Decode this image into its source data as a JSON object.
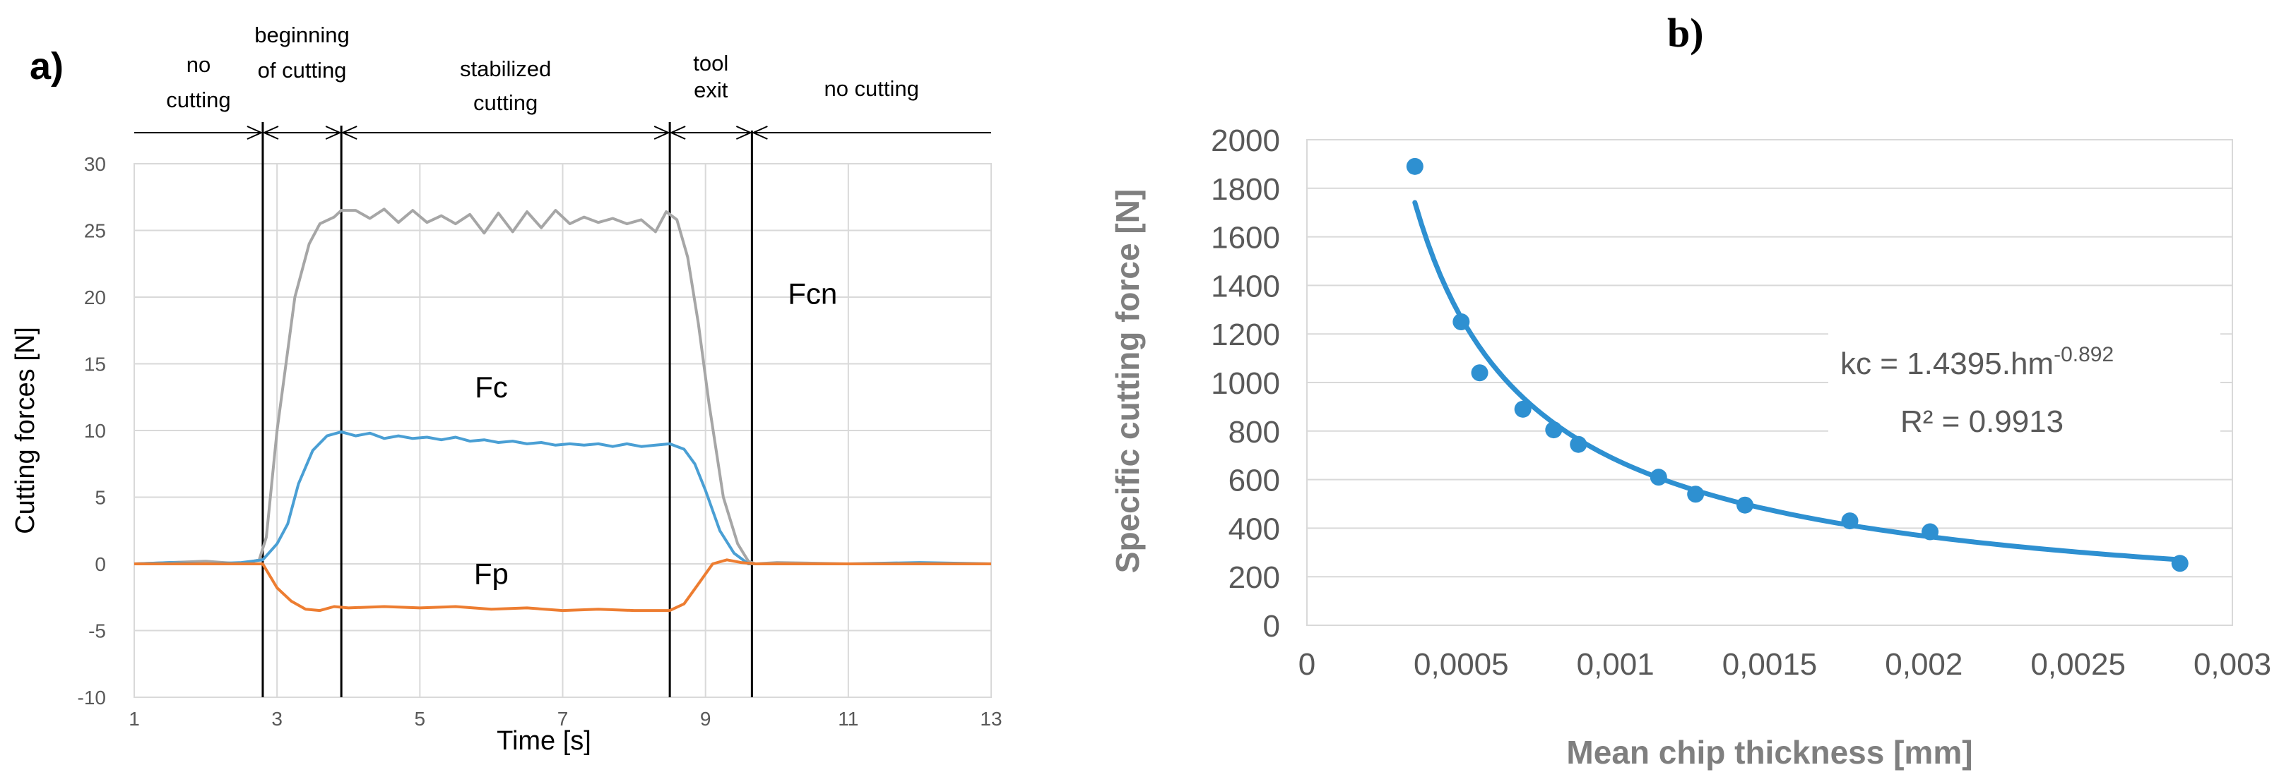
{
  "colors": {
    "fcn": "#a6a6a6",
    "fc": "#4a9fd4",
    "fp": "#ed7d31",
    "scatter": "#2e90d1",
    "grid": "#d9d9d9",
    "tick_text": "#595959",
    "axis_title_b": "#7f7f7f"
  },
  "chart_data": [
    {
      "type": "line",
      "panel_label": "a)",
      "xlabel": "Time [s]",
      "ylabel": "Cutting forces [N]",
      "xlim": [
        1,
        13
      ],
      "ylim": [
        -10,
        30
      ],
      "xticks": [
        "1",
        "3",
        "5",
        "7",
        "9",
        "11",
        "13"
      ],
      "yticks": [
        "-10",
        "-5",
        "0",
        "5",
        "10",
        "15",
        "20",
        "25",
        "30"
      ],
      "grid": "vertical and horizontal",
      "phases": [
        {
          "label": [
            "no",
            "cutting"
          ],
          "from": 1,
          "to": 2.8
        },
        {
          "label": [
            "beginning",
            "of cutting"
          ],
          "from": 2.8,
          "to": 3.9
        },
        {
          "label": [
            "stabilized",
            "cutting"
          ],
          "from": 3.9,
          "to": 8.5
        },
        {
          "label": [
            "tool",
            "exit"
          ],
          "from": 8.5,
          "to": 9.65
        },
        {
          "label": [
            "no cutting"
          ],
          "from": 9.65,
          "to": 13
        }
      ],
      "boundaries": [
        2.8,
        3.9,
        8.5,
        9.65
      ],
      "series": [
        {
          "name": "Fcn",
          "points": [
            [
              1,
              0
            ],
            [
              1.5,
              0.1
            ],
            [
              2,
              0.2
            ],
            [
              2.5,
              0
            ],
            [
              2.75,
              0.3
            ],
            [
              2.85,
              2
            ],
            [
              3.0,
              10
            ],
            [
              3.1,
              14
            ],
            [
              3.25,
              20
            ],
            [
              3.45,
              24
            ],
            [
              3.6,
              25.5
            ],
            [
              3.8,
              26
            ],
            [
              3.9,
              26.5
            ],
            [
              4.1,
              26.5
            ],
            [
              4.3,
              25.9
            ],
            [
              4.5,
              26.6
            ],
            [
              4.7,
              25.6
            ],
            [
              4.9,
              26.5
            ],
            [
              5.1,
              25.6
            ],
            [
              5.3,
              26.1
            ],
            [
              5.5,
              25.5
            ],
            [
              5.7,
              26.2
            ],
            [
              5.9,
              24.8
            ],
            [
              6.1,
              26.3
            ],
            [
              6.3,
              24.9
            ],
            [
              6.5,
              26.4
            ],
            [
              6.7,
              25.2
            ],
            [
              6.9,
              26.5
            ],
            [
              7.1,
              25.5
            ],
            [
              7.3,
              26.0
            ],
            [
              7.5,
              25.6
            ],
            [
              7.7,
              25.9
            ],
            [
              7.9,
              25.5
            ],
            [
              8.1,
              25.8
            ],
            [
              8.3,
              24.9
            ],
            [
              8.45,
              26.4
            ],
            [
              8.6,
              25.8
            ],
            [
              8.75,
              23
            ],
            [
              8.9,
              18
            ],
            [
              9.05,
              12
            ],
            [
              9.25,
              5
            ],
            [
              9.45,
              1.5
            ],
            [
              9.6,
              0.2
            ],
            [
              9.7,
              0
            ],
            [
              10,
              0.1
            ],
            [
              11,
              0
            ],
            [
              12,
              0
            ],
            [
              13,
              0
            ]
          ]
        },
        {
          "name": "Fc",
          "points": [
            [
              1,
              0
            ],
            [
              1.5,
              0.1
            ],
            [
              2,
              0
            ],
            [
              2.5,
              0.1
            ],
            [
              2.8,
              0.3
            ],
            [
              3.0,
              1.5
            ],
            [
              3.15,
              3
            ],
            [
              3.3,
              6
            ],
            [
              3.5,
              8.5
            ],
            [
              3.7,
              9.6
            ],
            [
              3.9,
              9.9
            ],
            [
              4.1,
              9.6
            ],
            [
              4.3,
              9.8
            ],
            [
              4.5,
              9.4
            ],
            [
              4.7,
              9.6
            ],
            [
              4.9,
              9.4
            ],
            [
              5.1,
              9.5
            ],
            [
              5.3,
              9.3
            ],
            [
              5.5,
              9.5
            ],
            [
              5.7,
              9.2
            ],
            [
              5.9,
              9.3
            ],
            [
              6.1,
              9.1
            ],
            [
              6.3,
              9.2
            ],
            [
              6.5,
              9.0
            ],
            [
              6.7,
              9.1
            ],
            [
              6.9,
              8.9
            ],
            [
              7.1,
              9.0
            ],
            [
              7.3,
              8.9
            ],
            [
              7.5,
              9.0
            ],
            [
              7.7,
              8.8
            ],
            [
              7.9,
              9.0
            ],
            [
              8.1,
              8.8
            ],
            [
              8.3,
              8.9
            ],
            [
              8.5,
              9.0
            ],
            [
              8.7,
              8.6
            ],
            [
              8.85,
              7.5
            ],
            [
              9.0,
              5.5
            ],
            [
              9.2,
              2.5
            ],
            [
              9.4,
              0.8
            ],
            [
              9.6,
              0
            ],
            [
              10,
              0
            ],
            [
              11,
              0
            ],
            [
              12,
              0.1
            ],
            [
              13,
              0
            ]
          ]
        },
        {
          "name": "Fp",
          "points": [
            [
              1,
              0
            ],
            [
              2,
              0
            ],
            [
              2.8,
              0
            ],
            [
              3.0,
              -1.8
            ],
            [
              3.2,
              -2.8
            ],
            [
              3.4,
              -3.4
            ],
            [
              3.6,
              -3.5
            ],
            [
              3.8,
              -3.2
            ],
            [
              4.0,
              -3.3
            ],
            [
              4.5,
              -3.2
            ],
            [
              5,
              -3.3
            ],
            [
              5.5,
              -3.2
            ],
            [
              6,
              -3.4
            ],
            [
              6.5,
              -3.3
            ],
            [
              7,
              -3.5
            ],
            [
              7.5,
              -3.4
            ],
            [
              8,
              -3.5
            ],
            [
              8.5,
              -3.5
            ],
            [
              8.7,
              -3.0
            ],
            [
              8.9,
              -1.5
            ],
            [
              9.1,
              0
            ],
            [
              9.3,
              0.3
            ],
            [
              9.5,
              0.1
            ],
            [
              9.7,
              0
            ],
            [
              10,
              0
            ],
            [
              13,
              0
            ]
          ]
        }
      ],
      "series_labels": [
        {
          "name": "Fcn",
          "x": 10.5,
          "y": 19.5
        },
        {
          "name": "Fc",
          "x": 6.0,
          "y": 12.5
        },
        {
          "name": "Fp",
          "x": 6.0,
          "y": -1.5
        }
      ]
    },
    {
      "type": "scatter",
      "panel_label": "b)",
      "xlabel": "Mean chip thickness [mm]",
      "ylabel": "Specific cutting force  [N]",
      "xlim": [
        0,
        0.003
      ],
      "ylim": [
        0,
        2000
      ],
      "xticks": [
        "0",
        "0,0005",
        "0,001",
        "0,0015",
        "0,002",
        "0,0025",
        "0,003"
      ],
      "yticks": [
        "0",
        "200",
        "400",
        "600",
        "800",
        "1000",
        "1200",
        "1400",
        "1600",
        "1800",
        "2000"
      ],
      "grid": "horizontal",
      "points": [
        [
          0.00035,
          1890
        ],
        [
          0.0005,
          1250
        ],
        [
          0.00056,
          1040
        ],
        [
          0.0007,
          890
        ],
        [
          0.0008,
          805
        ],
        [
          0.00088,
          745
        ],
        [
          0.00114,
          610
        ],
        [
          0.00126,
          540
        ],
        [
          0.00142,
          495
        ],
        [
          0.00176,
          430
        ],
        [
          0.00202,
          385
        ],
        [
          0.00283,
          255
        ]
      ],
      "trendline": {
        "a": 1.4395,
        "b": -0.892,
        "from": 0.00035,
        "to": 0.00283
      },
      "equation": {
        "prefix": "kc = 1.4395.hm",
        "exponent": "-0.892",
        "r2": "R² = 0.9913"
      }
    }
  ]
}
